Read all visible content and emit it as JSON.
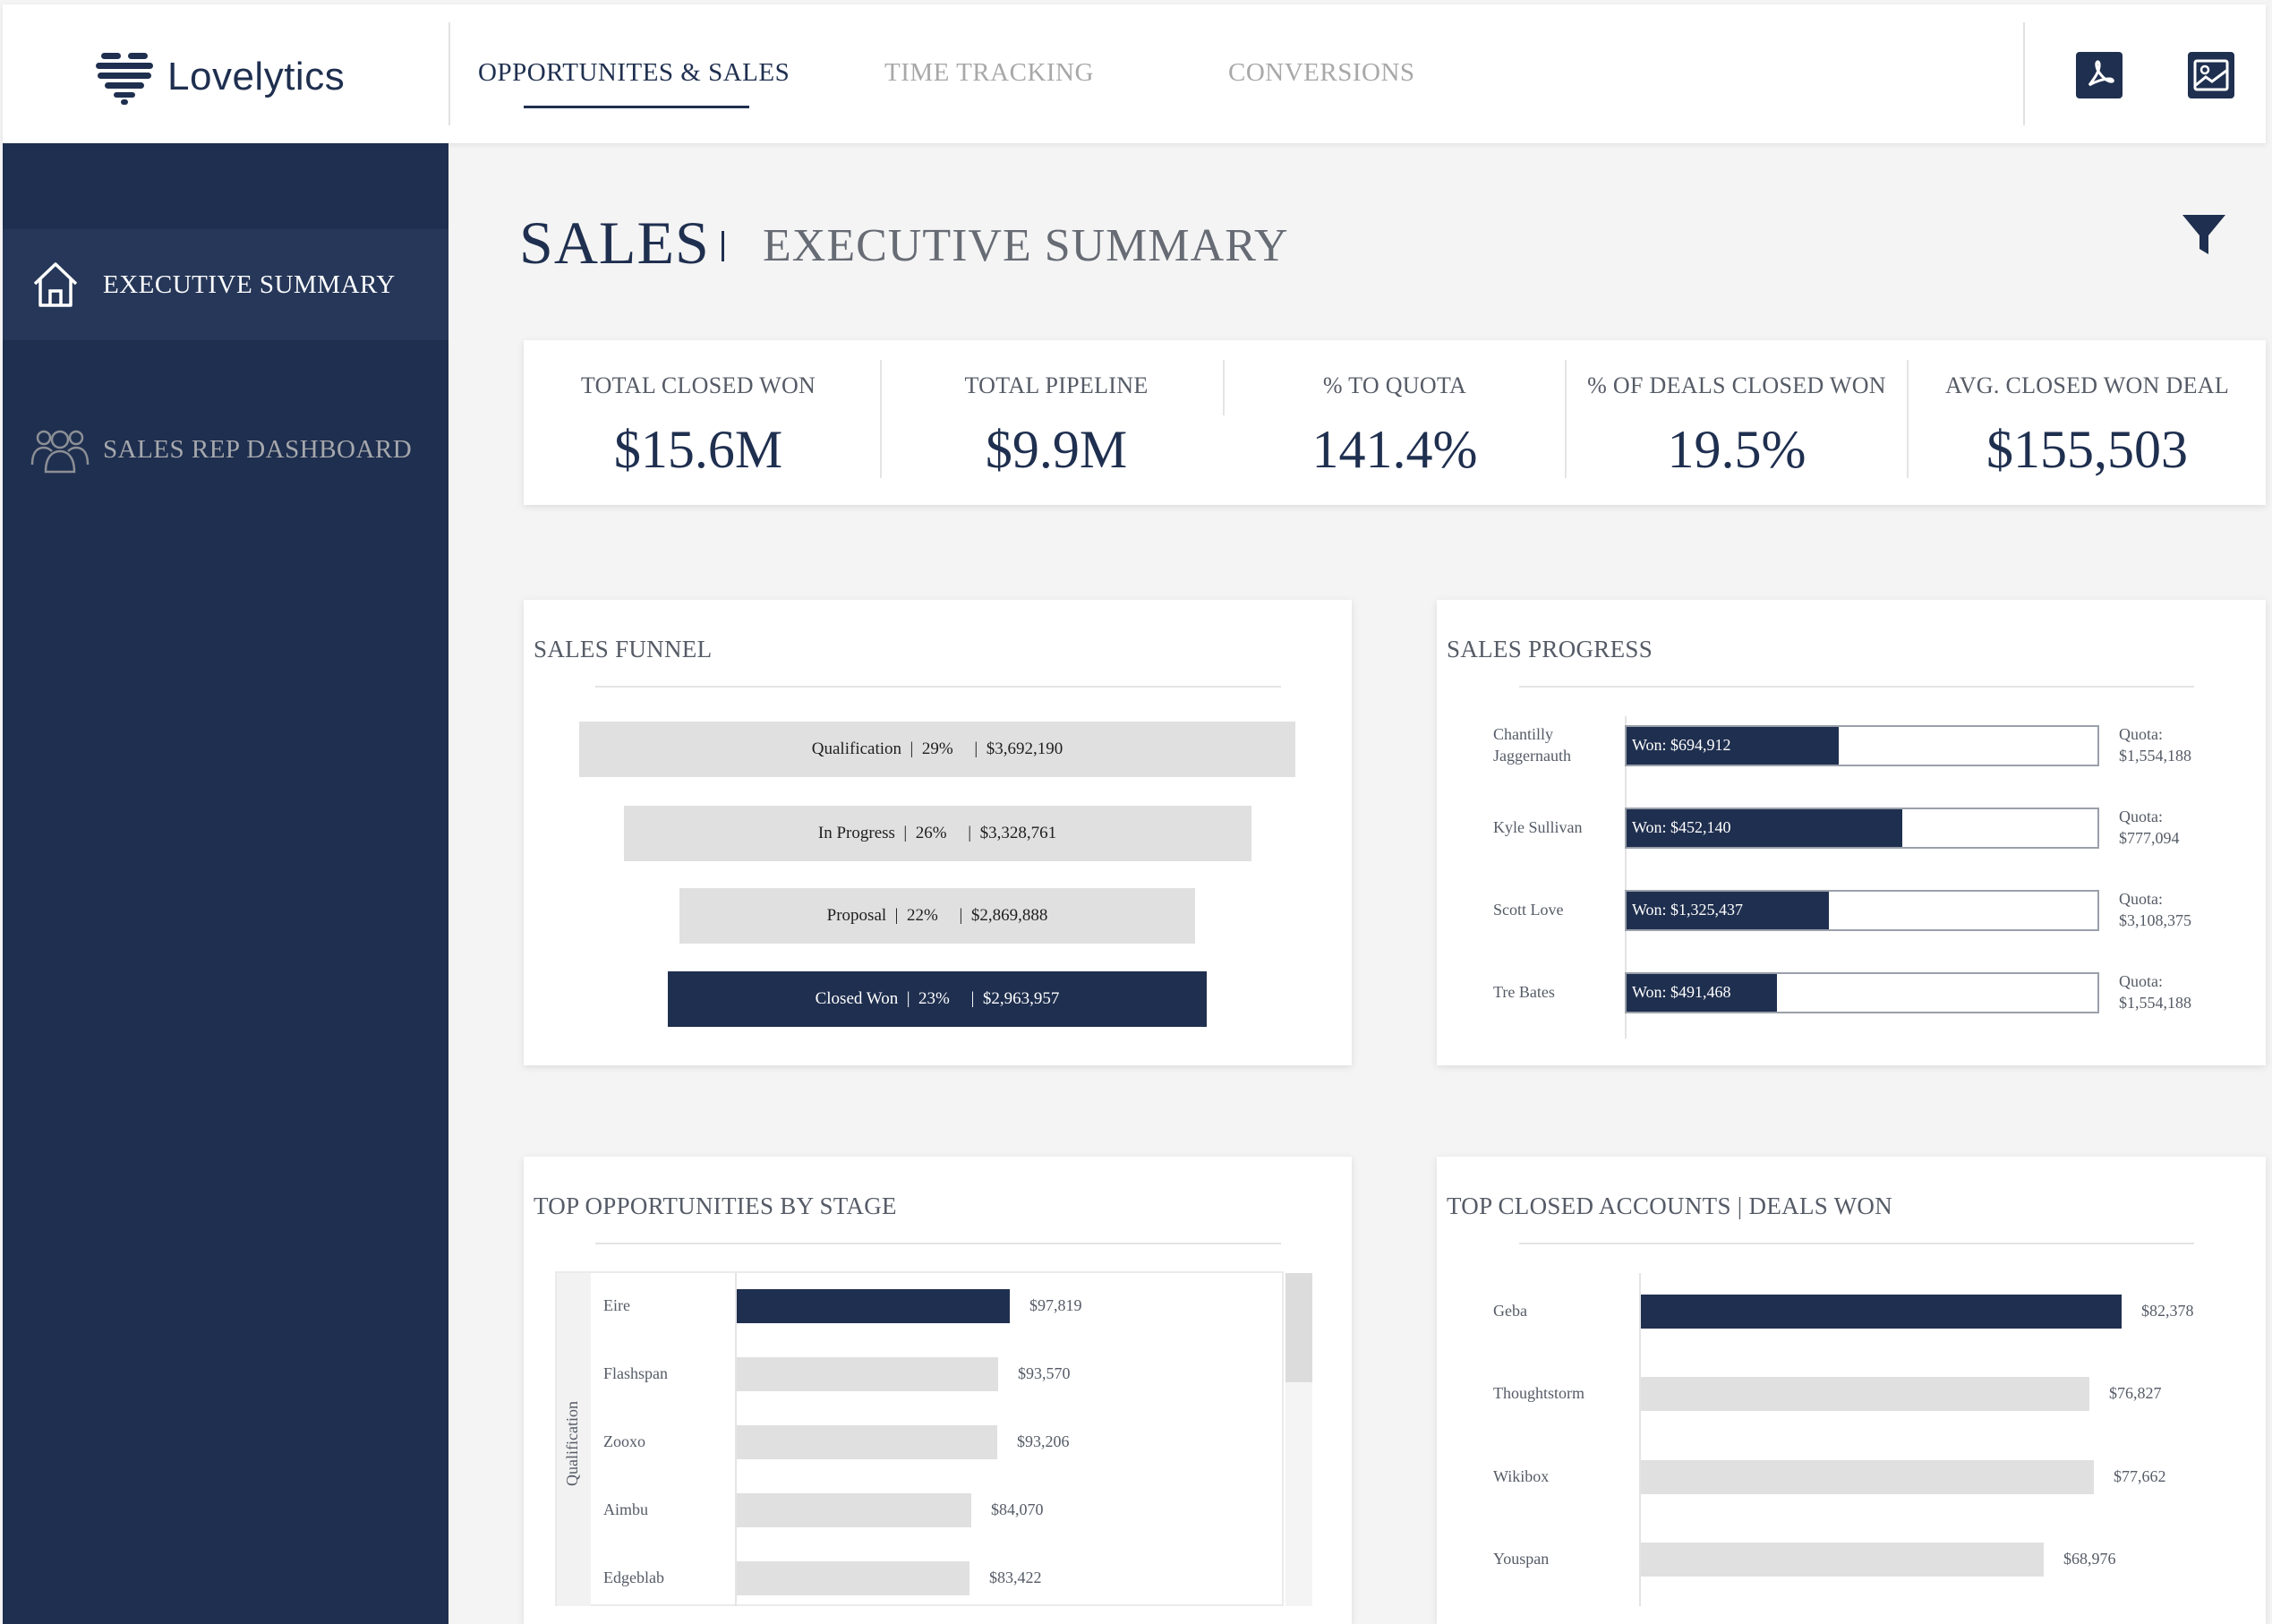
{
  "brand": {
    "name": "Lovelytics",
    "logo_icon": "heart-bars-logo"
  },
  "nav": {
    "tabs": [
      {
        "label": "OPPORTUNITES & SALES",
        "active": true
      },
      {
        "label": "TIME TRACKING",
        "active": false
      },
      {
        "label": "CONVERSIONS",
        "active": false
      }
    ],
    "actions": [
      {
        "icon": "pdf-export-icon"
      },
      {
        "icon": "image-export-icon"
      }
    ]
  },
  "sidebar": {
    "items": [
      {
        "label": "EXECUTIVE SUMMARY",
        "icon": "home-icon",
        "active": true
      },
      {
        "label": "SALES REP DASHBOARD",
        "icon": "users-icon",
        "active": false
      }
    ]
  },
  "page": {
    "title": "SALES",
    "subtitle": "EXECUTIVE SUMMARY",
    "filter_icon": "filter-icon"
  },
  "kpis": [
    {
      "label": "TOTAL CLOSED WON",
      "value": "$15.6M"
    },
    {
      "label": "TOTAL PIPELINE",
      "value": "$9.9M"
    },
    {
      "label": "% TO QUOTA",
      "value": "141.4%"
    },
    {
      "label": "% OF DEALS CLOSED WON",
      "value": "19.5%"
    },
    {
      "label": "AVG. CLOSED WON DEAL",
      "value": "$155,503"
    }
  ],
  "panels": {
    "funnel_title": "SALES FUNNEL",
    "progress_title": "SALES PROGRESS",
    "opportunities_title": "TOP OPPORTUNITIES BY STAGE",
    "accounts_title": "TOP CLOSED ACCOUNTS | DEALS WON"
  },
  "colors": {
    "primary": "#1f2f4f",
    "bar_light": "#e0e0e0",
    "bar_dark": "#1f2f4f"
  },
  "chart_data": [
    {
      "type": "bar",
      "title": "SALES FUNNEL",
      "categories": [
        "Qualification",
        "In Progress",
        "Proposal",
        "Closed Won"
      ],
      "percents": [
        "29%",
        "26%",
        "22%",
        "23%"
      ],
      "amounts": [
        "$3,692,190",
        "$3,328,761",
        "$2,869,888",
        "$2,963,957"
      ],
      "values": [
        3692190,
        3328761,
        2869888,
        2963957
      ],
      "highlight": "Closed Won"
    },
    {
      "type": "bar",
      "title": "SALES PROGRESS",
      "reps": [
        {
          "name": "Chantilly Jaggernauth",
          "won": 694912,
          "won_label": "Won: $694,912",
          "quota": 1554188,
          "quota_label": "$1,554,188"
        },
        {
          "name": "Kyle Sullivan",
          "won": 452140,
          "won_label": "Won: $452,140",
          "quota": 777094,
          "quota_label": "$777,094"
        },
        {
          "name": "Scott Love",
          "won": 1325437,
          "won_label": "Won: $1,325,437",
          "quota": 3108375,
          "quota_label": "$3,108,375"
        },
        {
          "name": "Tre Bates",
          "won": 491468,
          "won_label": "Won: $491,468",
          "quota": 1554188,
          "quota_label": "$1,554,188"
        }
      ],
      "quota_prefix": "Quota:"
    },
    {
      "type": "bar",
      "title": "TOP OPPORTUNITIES BY STAGE",
      "stage": "Qualification",
      "categories": [
        "Eire",
        "Flashspan",
        "Zooxo",
        "Aimbu",
        "Edgeblab"
      ],
      "values": [
        97819,
        93570,
        93206,
        84070,
        83422
      ],
      "labels": [
        "$97,819",
        "$93,570",
        "$93,206",
        "$84,070",
        "$83,422"
      ],
      "highlight": "Eire"
    },
    {
      "type": "bar",
      "title": "TOP CLOSED ACCOUNTS | DEALS WON",
      "categories": [
        "Geba",
        "Thoughtstorm",
        "Wikibox",
        "Youspan"
      ],
      "values": [
        82378,
        76827,
        77662,
        68976
      ],
      "labels": [
        "$82,378",
        "$76,827",
        "$77,662",
        "$68,976"
      ],
      "highlight": "Geba"
    }
  ]
}
